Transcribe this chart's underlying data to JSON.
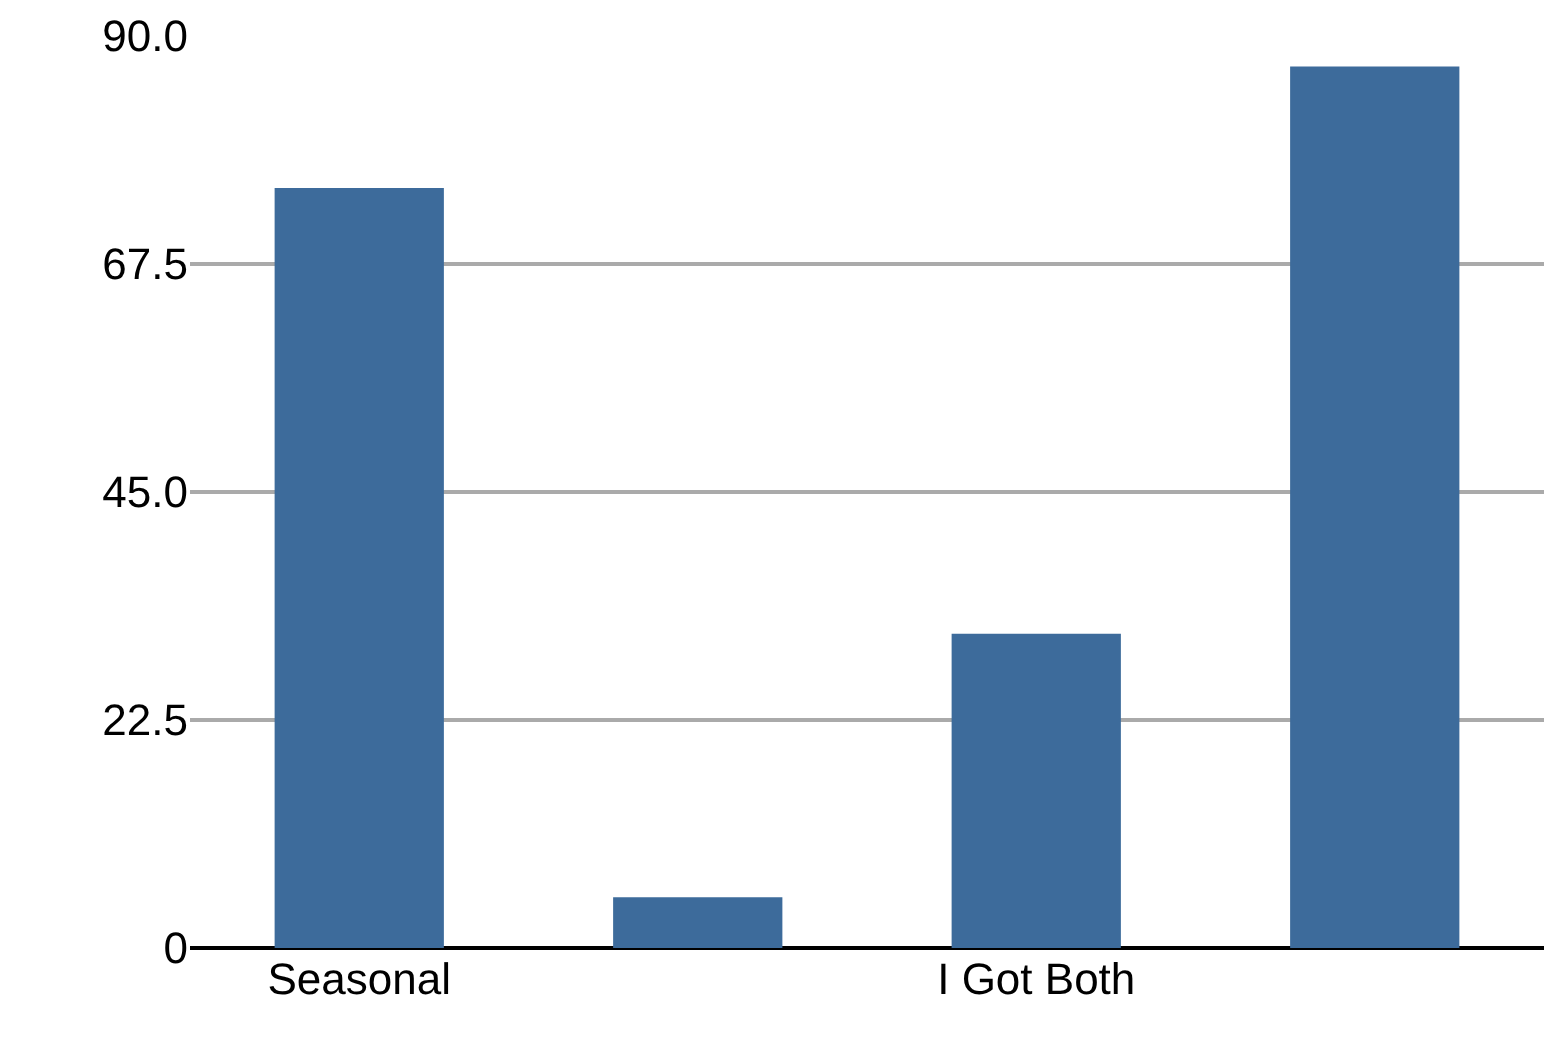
{
  "chart_data": {
    "type": "bar",
    "categories": [
      "Seasonal",
      null,
      "I Got Both",
      null
    ],
    "values": [
      75,
      5,
      31,
      87
    ],
    "color": "#3d6b9b",
    "ylim": [
      0,
      90
    ],
    "yticks": [
      0,
      {
        "value": 22.5,
        "label": "22.5"
      },
      {
        "value": 45,
        "label": "45.0"
      },
      {
        "value": 67.5,
        "label": "67.5"
      },
      {
        "value": 90,
        "label": "90.0"
      }
    ],
    "grid": "y"
  }
}
